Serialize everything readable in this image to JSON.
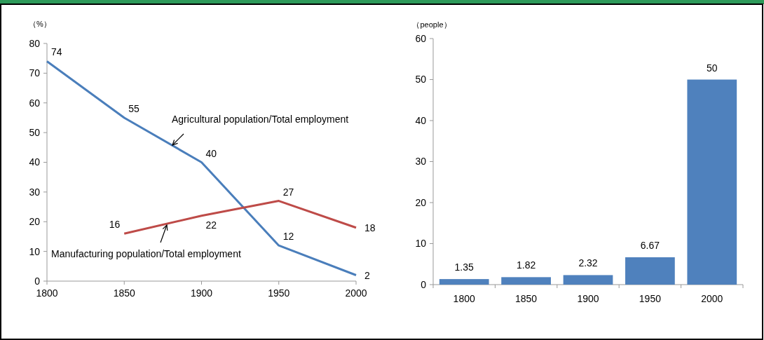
{
  "chart_data": [
    {
      "type": "line",
      "ylabel": "（%）",
      "x": [
        1800,
        1850,
        1900,
        1950,
        2000
      ],
      "xlim": [
        1800,
        2000
      ],
      "xticks": [
        1800,
        1850,
        1900,
        1950,
        2000
      ],
      "ylim": [
        0,
        80
      ],
      "yticks": [
        0,
        10,
        20,
        30,
        40,
        50,
        60,
        70,
        80
      ],
      "data_labels": true,
      "grid": false,
      "legend": false,
      "marker": "none",
      "series": [
        {
          "name": "Agricultural population/Total employment",
          "color": "#4a7ebb",
          "values": [
            74,
            55,
            40,
            12,
            2
          ]
        },
        {
          "name": "Manufacturing population/Total employment",
          "color": "#be4b48",
          "x": [
            1850,
            1900,
            1950,
            2000
          ],
          "values": [
            16,
            22,
            27,
            18
          ]
        }
      ]
    },
    {
      "type": "bar",
      "ylabel": "（people）",
      "categories": [
        "1800",
        "1850",
        "1900",
        "1950",
        "2000"
      ],
      "values": [
        1.35,
        1.82,
        2.32,
        6.67,
        50
      ],
      "color": "#4f81bd",
      "ylim": [
        0,
        60
      ],
      "yticks": [
        0,
        10,
        20,
        30,
        40,
        50,
        60
      ],
      "data_labels": true,
      "grid": false
    }
  ]
}
